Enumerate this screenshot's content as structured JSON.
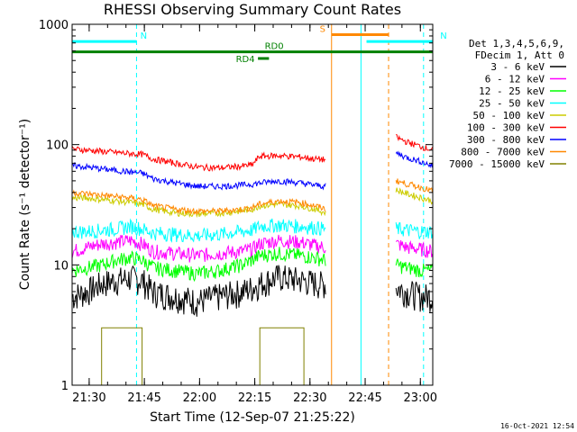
{
  "chart_data": {
    "type": "line",
    "title": "RHESSI Observing Summary Count Rates",
    "xlabel": "Start Time (12-Sep-07 21:25:22)",
    "ylabel": "Count Rate (s⁻¹ detector⁻¹)",
    "y_scale": "log",
    "ylim": [
      1,
      1000
    ],
    "xlim_minutes": [
      0,
      98
    ],
    "x_tick_labels": [
      "21:30",
      "21:45",
      "22:00",
      "22:15",
      "22:30",
      "22:45",
      "23:00"
    ],
    "x_tick_minutes": [
      4.6333,
      19.6333,
      34.6333,
      49.6333,
      64.6333,
      79.6333,
      94.6333
    ],
    "y_tick_labels": [
      "1",
      "10",
      "100",
      "1000"
    ],
    "y_tick_values": [
      1,
      10,
      100,
      1000
    ],
    "legend_header": [
      "Det 1,3,4,5,6,9,",
      "FDecim 1, Att 0"
    ],
    "legend_position": "right",
    "timestamp": "16-Oct-2021 12:54",
    "series": [
      {
        "name": "3 - 6 keV",
        "color": "#000000",
        "points": [
          [
            0,
            5.5
          ],
          [
            4,
            6
          ],
          [
            8,
            7
          ],
          [
            12,
            7.5
          ],
          [
            16,
            7.8
          ],
          [
            19,
            7.5
          ],
          [
            22,
            6
          ],
          [
            28,
            5.5
          ],
          [
            34,
            5
          ],
          [
            40,
            5.5
          ],
          [
            46,
            6
          ],
          [
            49,
            6.5
          ],
          [
            51,
            7
          ],
          [
            56,
            8
          ],
          [
            62,
            7.5
          ],
          [
            67,
            7
          ],
          [
            69,
            7
          ]
        ],
        "points2": [
          [
            88,
            6.5
          ],
          [
            91,
            6
          ],
          [
            95,
            5.5
          ],
          [
            98,
            5.5
          ]
        ]
      },
      {
        "name": "6 - 12 keV",
        "color": "#ff00ff",
        "points": [
          [
            0,
            13
          ],
          [
            4,
            14
          ],
          [
            8,
            15
          ],
          [
            12,
            15.5
          ],
          [
            16,
            16
          ],
          [
            19,
            15
          ],
          [
            22,
            13
          ],
          [
            28,
            12.5
          ],
          [
            34,
            12
          ],
          [
            40,
            12.5
          ],
          [
            46,
            13
          ],
          [
            49,
            13.5
          ],
          [
            51,
            15
          ],
          [
            56,
            16
          ],
          [
            62,
            15.5
          ],
          [
            66,
            14.5
          ],
          [
            69,
            14
          ]
        ],
        "points2": [
          [
            88,
            15
          ],
          [
            91,
            14
          ],
          [
            95,
            13.5
          ],
          [
            98,
            13
          ]
        ]
      },
      {
        "name": "12 - 25 keV",
        "color": "#00ff00",
        "points": [
          [
            0,
            9
          ],
          [
            4,
            9.5
          ],
          [
            8,
            10
          ],
          [
            12,
            11
          ],
          [
            16,
            11.5
          ],
          [
            19,
            11
          ],
          [
            22,
            9.5
          ],
          [
            28,
            9
          ],
          [
            34,
            8.5
          ],
          [
            40,
            9
          ],
          [
            46,
            10
          ],
          [
            49,
            11
          ],
          [
            51,
            12
          ],
          [
            56,
            12.5
          ],
          [
            62,
            12
          ],
          [
            66,
            11.5
          ],
          [
            69,
            11
          ]
        ],
        "points2": [
          [
            88,
            10
          ],
          [
            91,
            9.5
          ],
          [
            95,
            9
          ],
          [
            98,
            9
          ]
        ]
      },
      {
        "name": "25 - 50 keV",
        "color": "#00ffff",
        "points": [
          [
            0,
            19
          ],
          [
            4,
            19
          ],
          [
            8,
            19.5
          ],
          [
            12,
            20
          ],
          [
            16,
            21
          ],
          [
            19,
            20
          ],
          [
            22,
            18.5
          ],
          [
            28,
            18
          ],
          [
            34,
            17.5
          ],
          [
            40,
            18
          ],
          [
            46,
            19
          ],
          [
            49,
            19.5
          ],
          [
            51,
            21
          ],
          [
            56,
            21.5
          ],
          [
            62,
            21
          ],
          [
            66,
            20.5
          ],
          [
            69,
            20
          ]
        ],
        "points2": [
          [
            88,
            20
          ],
          [
            91,
            19.5
          ],
          [
            95,
            19
          ],
          [
            98,
            19
          ]
        ]
      },
      {
        "name": "50 - 100 keV",
        "color": "#cccc00",
        "points": [
          [
            0,
            36
          ],
          [
            4,
            36
          ],
          [
            8,
            35
          ],
          [
            12,
            34
          ],
          [
            16,
            33
          ],
          [
            19,
            32
          ],
          [
            22,
            29
          ],
          [
            28,
            27
          ],
          [
            34,
            26.5
          ],
          [
            40,
            27
          ],
          [
            46,
            28
          ],
          [
            49,
            29
          ],
          [
            51,
            31
          ],
          [
            56,
            32
          ],
          [
            62,
            31
          ],
          [
            66,
            29
          ],
          [
            69,
            27
          ]
        ],
        "points2": [
          [
            88,
            42
          ],
          [
            91,
            39
          ],
          [
            95,
            36
          ],
          [
            98,
            34
          ]
        ]
      },
      {
        "name": "100 - 300 keV",
        "color": "#ff0000",
        "points": [
          [
            0,
            92
          ],
          [
            4,
            90
          ],
          [
            8,
            88
          ],
          [
            12,
            86
          ],
          [
            16,
            84
          ],
          [
            19,
            83
          ],
          [
            22,
            76
          ],
          [
            28,
            70
          ],
          [
            34,
            65
          ],
          [
            40,
            64
          ],
          [
            46,
            66
          ],
          [
            49,
            68
          ],
          [
            51,
            80
          ],
          [
            56,
            81
          ],
          [
            62,
            79
          ],
          [
            66,
            76
          ],
          [
            69,
            75
          ]
        ],
        "points2": [
          [
            88,
            115
          ],
          [
            91,
            105
          ],
          [
            95,
            96
          ],
          [
            98,
            90
          ]
        ]
      },
      {
        "name": "300 - 800 keV",
        "color": "#0000ff",
        "points": [
          [
            0,
            67
          ],
          [
            4,
            65
          ],
          [
            8,
            63
          ],
          [
            12,
            61
          ],
          [
            16,
            59
          ],
          [
            19,
            58
          ],
          [
            22,
            52
          ],
          [
            28,
            48
          ],
          [
            34,
            45
          ],
          [
            40,
            45
          ],
          [
            46,
            46
          ],
          [
            49,
            47
          ],
          [
            51,
            48
          ],
          [
            56,
            50
          ],
          [
            62,
            48
          ],
          [
            66,
            46
          ],
          [
            69,
            45
          ]
        ],
        "points2": [
          [
            88,
            85
          ],
          [
            91,
            78
          ],
          [
            95,
            72
          ],
          [
            98,
            66
          ]
        ]
      },
      {
        "name": "800 - 7000 keV",
        "color": "#ff8800",
        "points": [
          [
            0,
            40
          ],
          [
            4,
            39
          ],
          [
            8,
            38
          ],
          [
            12,
            37
          ],
          [
            16,
            36
          ],
          [
            19,
            35
          ],
          [
            22,
            31
          ],
          [
            28,
            29
          ],
          [
            34,
            28
          ],
          [
            40,
            28
          ],
          [
            46,
            29
          ],
          [
            49,
            30
          ],
          [
            51,
            32
          ],
          [
            56,
            34
          ],
          [
            62,
            33
          ],
          [
            66,
            31
          ],
          [
            69,
            29
          ]
        ],
        "points2": [
          [
            88,
            50
          ],
          [
            91,
            47
          ],
          [
            95,
            44
          ],
          [
            98,
            41
          ]
        ]
      },
      {
        "name": "7000 - 15000 keV",
        "color": "#808000",
        "points": [
          [
            0,
            1
          ],
          [
            8,
            1
          ],
          [
            8,
            3
          ],
          [
            19,
            3
          ],
          [
            19,
            1
          ],
          [
            51,
            1
          ],
          [
            51,
            3
          ],
          [
            63,
            3
          ],
          [
            63,
            1
          ],
          [
            69,
            1
          ]
        ],
        "points2": [
          [
            88,
            1
          ],
          [
            98,
            1
          ]
        ]
      }
    ],
    "flags": [
      {
        "label": "N",
        "color": "#00ffff",
        "y": 720,
        "x_range": [
          0,
          17.5
        ]
      },
      {
        "label": "N",
        "color": "#00ffff",
        "y": 720,
        "x_range": [
          80,
          98
        ]
      },
      {
        "label": "S",
        "color": "#ff8800",
        "y": 820,
        "x_range": [
          70.5,
          86
        ]
      },
      {
        "label": "RD0",
        "color": "#008000",
        "y": 590,
        "x_range": [
          0,
          98
        ]
      },
      {
        "label": "RD4",
        "color": "#008000",
        "y": 520,
        "x_range": [
          50.5,
          53.5
        ]
      }
    ],
    "vertical_markers": [
      {
        "minute": 0,
        "color": "#00ffff",
        "style": "solid"
      },
      {
        "minute": 17.5,
        "color": "#00ffff",
        "style": "dashed"
      },
      {
        "minute": 70.5,
        "color": "#ff8800",
        "style": "solid"
      },
      {
        "minute": 78.5,
        "color": "#00ffff",
        "style": "solid"
      },
      {
        "minute": 86,
        "color": "#ff8800",
        "style": "dashed"
      },
      {
        "minute": 95.5,
        "color": "#00ffff",
        "style": "dashed"
      }
    ]
  }
}
